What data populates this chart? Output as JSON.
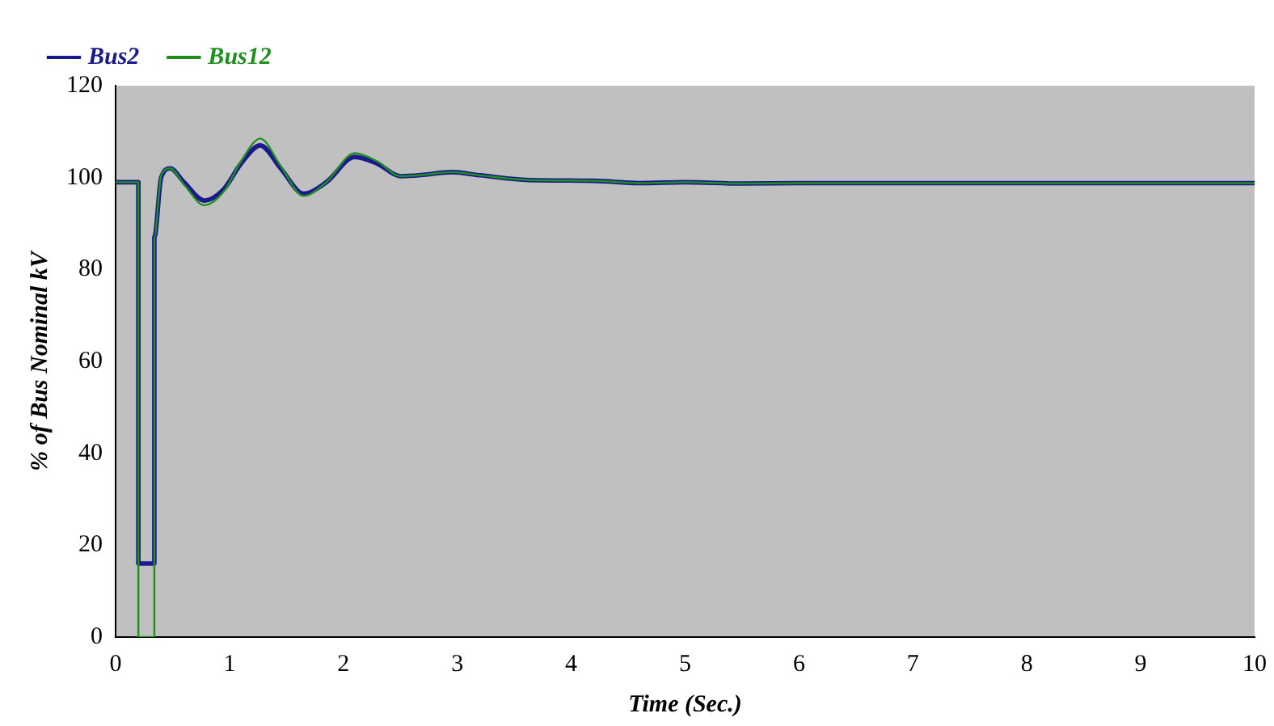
{
  "chart_data": {
    "type": "line",
    "xlabel": "Time (Sec.)",
    "ylabel": "% of Bus Nominal kV",
    "xlim": [
      0,
      10
    ],
    "xticks": [
      0,
      1,
      2,
      3,
      4,
      5,
      6,
      7,
      8,
      9,
      10
    ],
    "ylim": [
      0,
      120
    ],
    "yticks": [
      0,
      20,
      40,
      60,
      80,
      100,
      120
    ],
    "grid": false,
    "legend": "top left",
    "marker": "none",
    "line_style": "solid",
    "series": [
      {
        "name": "Bus2",
        "color": "#1a1a8c",
        "x": [
          0,
          0.2,
          0.2,
          0.34,
          0.34,
          0.4,
          0.48,
          0.6,
          0.78,
          0.95,
          1.1,
          1.27,
          1.45,
          1.65,
          1.85,
          2.1,
          2.3,
          2.5,
          2.7,
          2.95,
          3.2,
          3.6,
          4.2,
          4.6,
          5.0,
          5.5,
          6.0,
          7.0,
          8.0,
          9.0,
          10
        ],
        "values": [
          99,
          99,
          16,
          16,
          87,
          100,
          102,
          99,
          95,
          97.5,
          103,
          107,
          102,
          96.5,
          99,
          104.5,
          103,
          100.3,
          100.6,
          101.2,
          100.5,
          99.5,
          99.3,
          98.8,
          99,
          98.7,
          98.8,
          98.8,
          98.8,
          98.8,
          98.8
        ]
      },
      {
        "name": "Bus12",
        "color": "#1f8f1f",
        "x": [
          0,
          0.2,
          0.2,
          0.34,
          0.34,
          0.4,
          0.48,
          0.6,
          0.78,
          0.95,
          1.1,
          1.27,
          1.45,
          1.65,
          1.85,
          2.1,
          2.3,
          2.5,
          2.7,
          2.95,
          3.2,
          3.6,
          4.2,
          4.6,
          5.0,
          5.5,
          6.0,
          7.0,
          8.0,
          9.0,
          10
        ],
        "values": [
          99,
          99,
          0,
          0,
          87,
          100.5,
          102,
          98.5,
          94,
          97,
          103.5,
          108.5,
          102.5,
          96,
          99,
          105.3,
          103.5,
          100.3,
          100.6,
          101.2,
          100.5,
          99.5,
          99.3,
          98.8,
          99,
          98.7,
          98.8,
          98.8,
          98.8,
          98.8,
          98.8
        ]
      }
    ]
  }
}
